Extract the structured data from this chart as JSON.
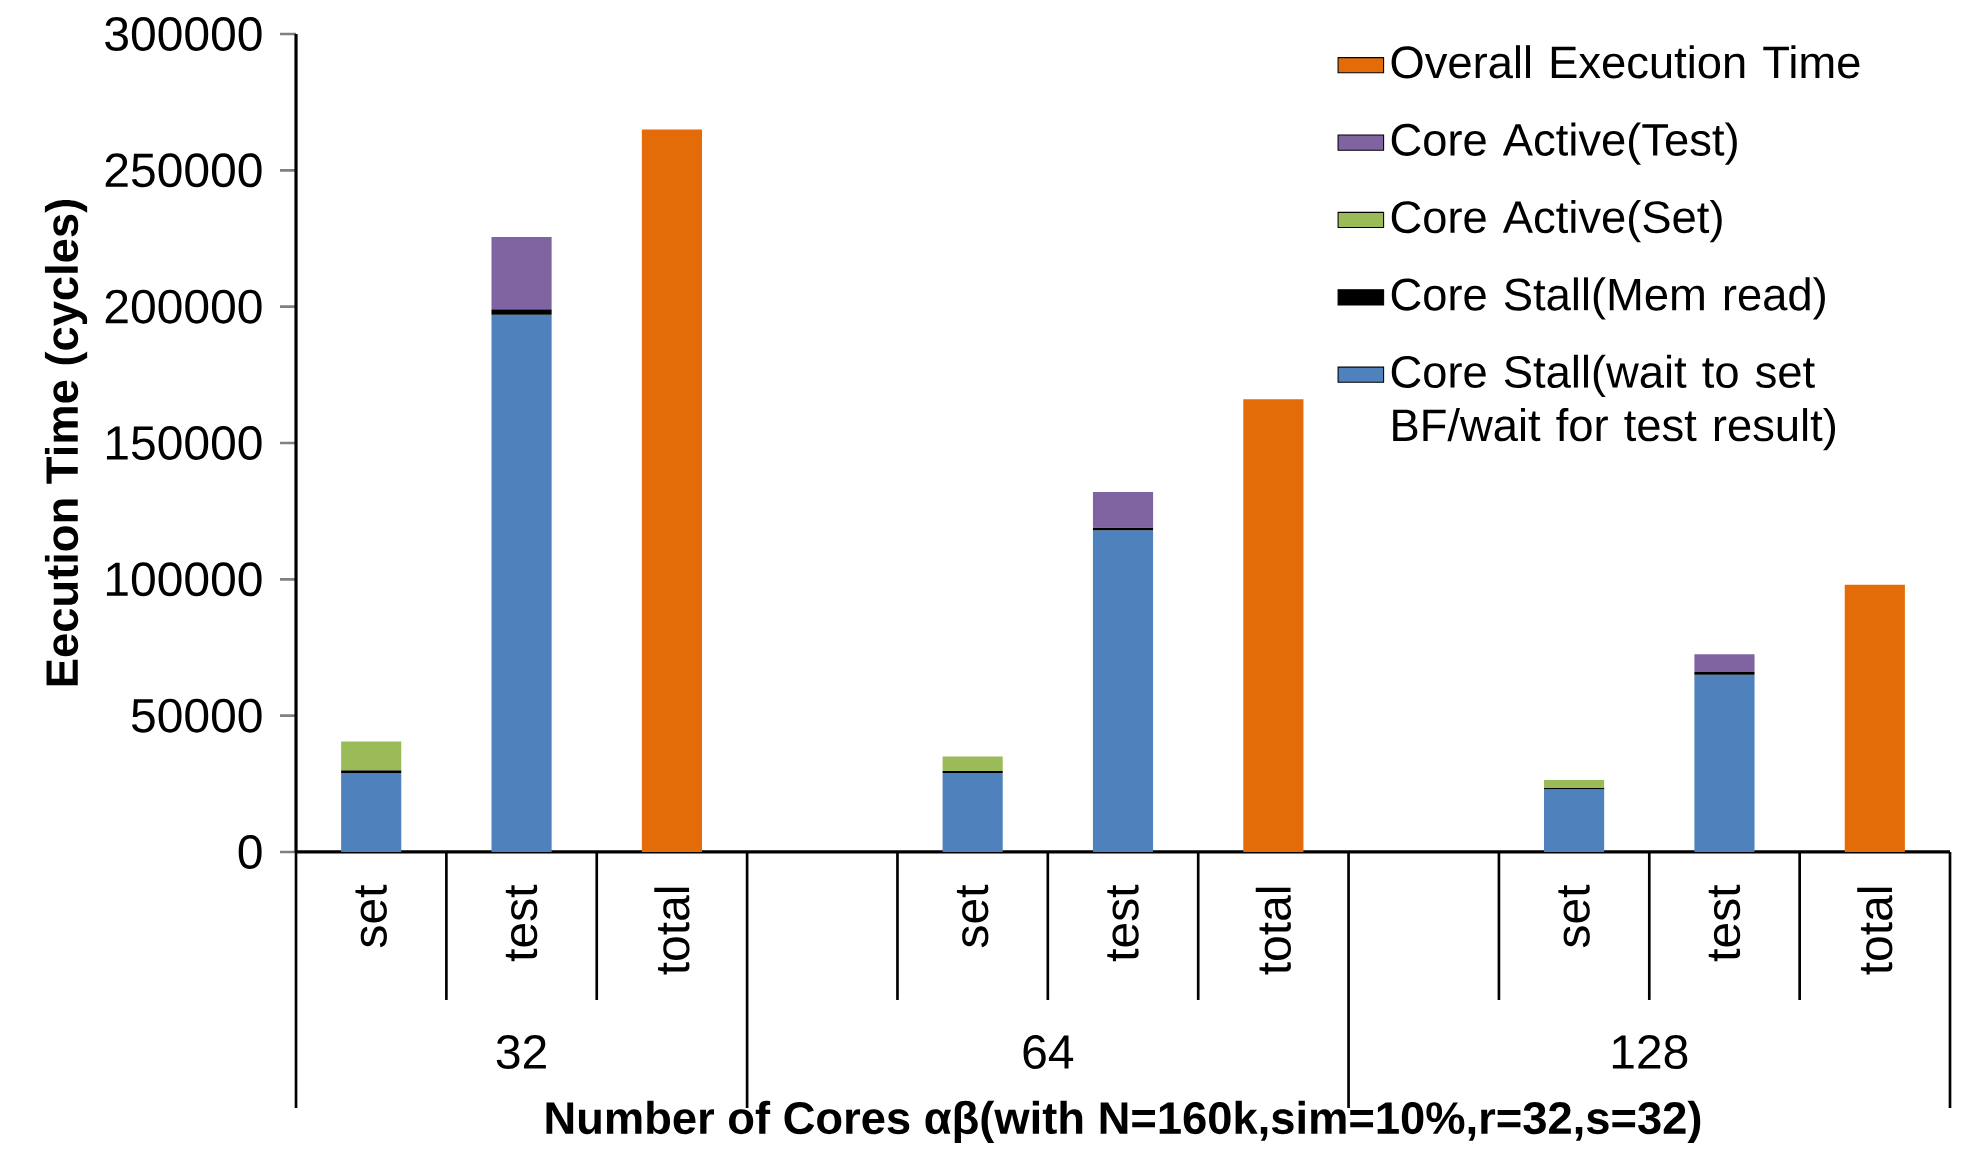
{
  "chart_data": {
    "type": "bar",
    "stacked": true,
    "xlabel": "Number of Cores αβ(with N=160k,sim=10%,r=32,s=32)",
    "ylabel": "Eecution Time (cycles)",
    "categories": [
      "set",
      "test",
      "total",
      null,
      "set",
      "test",
      "total",
      null,
      "set",
      "test",
      "total"
    ],
    "annotations": [
      "32",
      "64",
      "128"
    ],
    "ylim": [
      0,
      300000
    ],
    "yticks": [
      0,
      50000,
      100000,
      150000,
      200000,
      250000,
      300000
    ],
    "legend": "top right",
    "grid": false,
    "series": [
      {
        "name": "Core Stall(wait to set BF/wait for test result)",
        "color": "#4f81bd",
        "values": [
          29000,
          197000,
          null,
          null,
          29000,
          118000,
          null,
          null,
          23000,
          65000,
          null
        ]
      },
      {
        "name": "Core Stall(Mem read)",
        "color": "#000000",
        "values": [
          1000,
          2000,
          null,
          null,
          700,
          1000,
          null,
          null,
          500,
          1000,
          null
        ]
      },
      {
        "name": "Core Active(Set)",
        "color": "#9bbb59",
        "values": [
          10500,
          null,
          null,
          null,
          5300,
          null,
          null,
          null,
          2900,
          null,
          null
        ]
      },
      {
        "name": "Core Active(Test)",
        "color": "#8064a2",
        "values": [
          null,
          26500,
          null,
          null,
          null,
          13000,
          null,
          null,
          null,
          6500,
          null
        ]
      },
      {
        "name": "Overall Execution Time",
        "color": "#e36c09",
        "values": [
          null,
          null,
          265000,
          null,
          null,
          null,
          166000,
          null,
          null,
          null,
          98000
        ]
      }
    ]
  }
}
